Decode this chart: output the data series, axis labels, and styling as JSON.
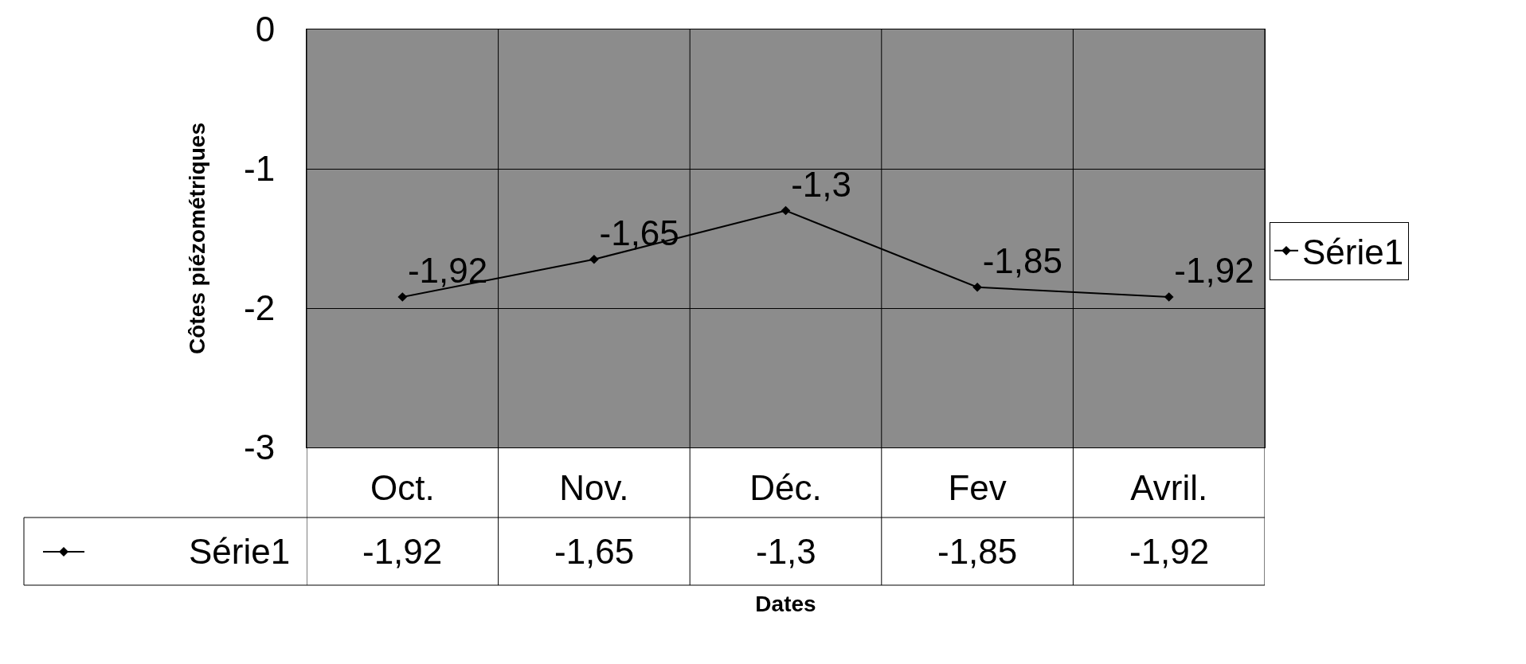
{
  "chart_data": {
    "type": "line",
    "xlabel": "Dates",
    "ylabel": "Côtes piézométriques",
    "categories": [
      "Oct.",
      "Nov.",
      "Déc.",
      "Fev",
      "Avril."
    ],
    "series": [
      {
        "name": "Série1",
        "color": "#000000",
        "values": [
          -1.92,
          -1.65,
          -1.3,
          -1.85,
          -1.92
        ],
        "value_labels": [
          "-1,92",
          "-1,65",
          "-1,3",
          "-1,85",
          "-1,92"
        ]
      }
    ],
    "ylim": [
      -3,
      0
    ],
    "yticks": [
      0,
      -1,
      -2,
      -3
    ],
    "grid": true,
    "legend": "right",
    "marker": "diamond",
    "line_style": "solid"
  }
}
